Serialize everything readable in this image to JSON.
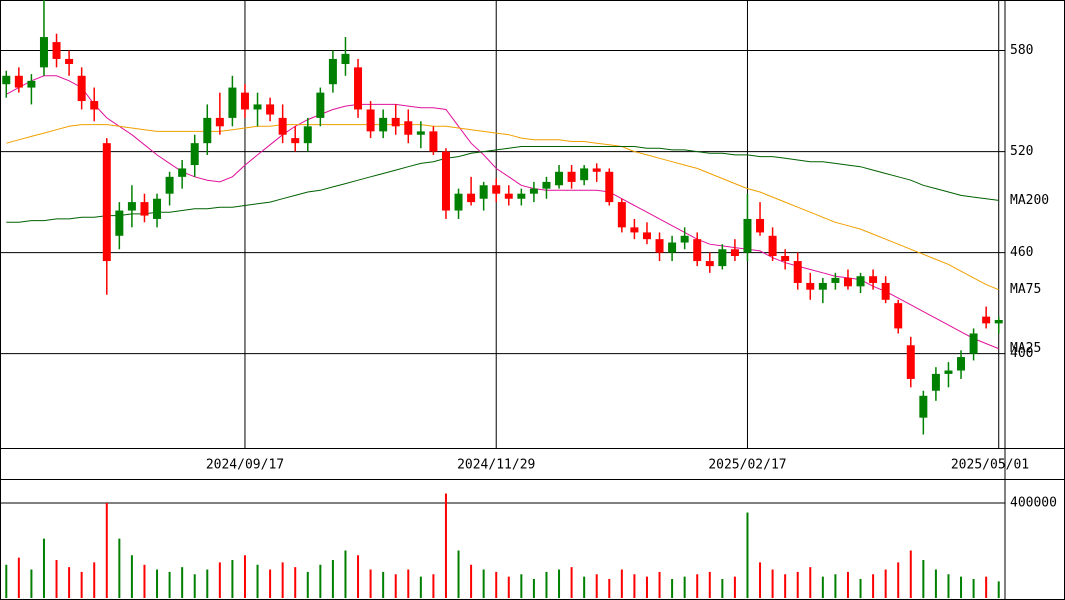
{
  "chart_data": [
    {
      "type": "candlestick",
      "categories": [
        null,
        null,
        null,
        null,
        null,
        null,
        null,
        null,
        null,
        null,
        null,
        null,
        null,
        null,
        null,
        null,
        null,
        null,
        null,
        "2024/09/17",
        null,
        null,
        null,
        null,
        null,
        null,
        null,
        null,
        null,
        null,
        null,
        null,
        null,
        null,
        null,
        null,
        null,
        null,
        null,
        "2024/11/29",
        null,
        null,
        null,
        null,
        null,
        null,
        null,
        null,
        null,
        null,
        null,
        null,
        null,
        null,
        null,
        null,
        null,
        null,
        null,
        "2025/02/17",
        null,
        null,
        null,
        null,
        null,
        null,
        null,
        null,
        null,
        null,
        null,
        null,
        null,
        null,
        null,
        null,
        null,
        null,
        null,
        "2025/05/01"
      ],
      "open": [
        560,
        565,
        558,
        570,
        585,
        575,
        565,
        550,
        525,
        470,
        485,
        490,
        480,
        495,
        505,
        512,
        525,
        540,
        540,
        555,
        545,
        548,
        540,
        528,
        525,
        540,
        560,
        572,
        570,
        545,
        532,
        540,
        538,
        530,
        532,
        520,
        485,
        495,
        492,
        500,
        495,
        492,
        495,
        498,
        500,
        508,
        503,
        510,
        508,
        490,
        475,
        472,
        468,
        460,
        466,
        468,
        455,
        452,
        462,
        460,
        480,
        470,
        458,
        455,
        442,
        438,
        442,
        445,
        440,
        446,
        442,
        430,
        405,
        362,
        378,
        388,
        390,
        400,
        422,
        418
      ],
      "high": [
        568,
        570,
        566,
        610,
        590,
        580,
        570,
        558,
        528,
        490,
        500,
        495,
        495,
        508,
        515,
        530,
        548,
        555,
        565,
        560,
        555,
        552,
        548,
        535,
        540,
        558,
        580,
        588,
        575,
        550,
        545,
        548,
        545,
        538,
        535,
        522,
        498,
        505,
        502,
        504,
        500,
        498,
        502,
        505,
        512,
        512,
        512,
        513,
        510,
        492,
        480,
        478,
        472,
        470,
        475,
        472,
        460,
        465,
        468,
        495,
        490,
        475,
        462,
        460,
        448,
        445,
        448,
        450,
        448,
        450,
        446,
        432,
        410,
        378,
        392,
        395,
        402,
        415,
        428,
        422
      ],
      "low": [
        552,
        555,
        548,
        565,
        570,
        565,
        545,
        538,
        435,
        462,
        475,
        478,
        475,
        488,
        498,
        505,
        518,
        530,
        535,
        540,
        535,
        538,
        525,
        520,
        520,
        535,
        555,
        565,
        540,
        528,
        528,
        530,
        525,
        522,
        518,
        480,
        480,
        488,
        485,
        490,
        488,
        488,
        490,
        492,
        498,
        498,
        500,
        502,
        488,
        472,
        468,
        465,
        455,
        455,
        462,
        452,
        448,
        450,
        455,
        455,
        470,
        455,
        450,
        438,
        432,
        430,
        438,
        438,
        436,
        438,
        430,
        412,
        380,
        352,
        372,
        380,
        385,
        396,
        415,
        412
      ],
      "close": [
        565,
        558,
        562,
        588,
        575,
        572,
        550,
        545,
        455,
        485,
        490,
        482,
        492,
        505,
        510,
        525,
        540,
        535,
        558,
        545,
        548,
        542,
        530,
        525,
        535,
        555,
        575,
        578,
        545,
        532,
        540,
        535,
        530,
        532,
        520,
        485,
        495,
        490,
        500,
        495,
        492,
        495,
        498,
        502,
        508,
        502,
        510,
        508,
        490,
        475,
        472,
        468,
        460,
        466,
        470,
        455,
        452,
        462,
        458,
        480,
        472,
        458,
        455,
        442,
        438,
        442,
        445,
        440,
        446,
        442,
        432,
        415,
        385,
        375,
        388,
        390,
        398,
        412,
        418,
        420
      ],
      "up_color": "#008000",
      "down_color": "#ff0000",
      "series": [
        {
          "name": "MA25",
          "color": "#e0109a",
          "values": [
            554,
            558,
            562,
            565,
            565,
            562,
            558,
            548,
            540,
            535,
            530,
            524,
            518,
            513,
            508,
            505,
            503,
            502,
            505,
            512,
            518,
            524,
            530,
            535,
            539,
            542,
            545,
            547,
            548,
            548,
            548,
            548,
            547,
            546,
            546,
            545,
            535,
            525,
            518,
            510,
            505,
            500,
            498,
            497,
            497,
            497,
            497,
            497,
            496,
            492,
            488,
            484,
            480,
            476,
            472,
            468,
            465,
            464,
            463,
            462,
            461,
            457,
            454,
            452,
            450,
            448,
            446,
            445,
            444,
            440,
            437,
            433,
            429,
            425,
            421,
            417,
            413,
            409,
            406,
            403
          ]
        },
        {
          "name": "MA75",
          "color": "#f0a000",
          "values": [
            525,
            527,
            529,
            531,
            533,
            535,
            536,
            536,
            536,
            535,
            534,
            533,
            532,
            532,
            532,
            532,
            532,
            532,
            533,
            534,
            535,
            535,
            536,
            536,
            536,
            536,
            536,
            536,
            536,
            536,
            536,
            536,
            536,
            536,
            535,
            535,
            534,
            533,
            532,
            531,
            530,
            528,
            527,
            527,
            527,
            526,
            526,
            525,
            524,
            523,
            520,
            518,
            516,
            514,
            512,
            510,
            507,
            504,
            501,
            498,
            496,
            493,
            490,
            487,
            484,
            481,
            478,
            476,
            474,
            471,
            468,
            465,
            462,
            459,
            456,
            453,
            449,
            445,
            441,
            438
          ]
        },
        {
          "name": "MA200",
          "color": "#006000",
          "values": [
            478,
            478,
            479,
            479,
            480,
            480,
            481,
            481,
            482,
            482,
            483,
            483,
            484,
            484,
            485,
            486,
            486,
            487,
            487,
            488,
            489,
            490,
            492,
            494,
            496,
            497,
            499,
            501,
            503,
            505,
            507,
            509,
            511,
            513,
            514,
            516,
            517,
            519,
            520,
            521,
            522,
            523,
            523,
            523,
            523,
            523,
            523,
            523,
            523,
            523,
            523,
            522,
            522,
            521,
            521,
            520,
            519,
            519,
            518,
            518,
            517,
            517,
            516,
            515,
            514,
            514,
            513,
            512,
            511,
            509,
            507,
            505,
            503,
            500,
            498,
            496,
            494,
            493,
            492,
            491
          ]
        }
      ],
      "ylim": [
        344,
        610
      ],
      "yticks": [
        400,
        460,
        520,
        580
      ],
      "grid": true
    },
    {
      "type": "bar",
      "values": [
        140000,
        170000,
        120000,
        250000,
        160000,
        130000,
        110000,
        150000,
        400000,
        250000,
        180000,
        140000,
        120000,
        110000,
        130000,
        100000,
        120000,
        150000,
        160000,
        180000,
        140000,
        120000,
        150000,
        130000,
        110000,
        140000,
        160000,
        200000,
        180000,
        120000,
        110000,
        100000,
        120000,
        90000,
        100000,
        440000,
        200000,
        140000,
        120000,
        110000,
        90000,
        100000,
        80000,
        110000,
        120000,
        130000,
        90000,
        100000,
        80000,
        120000,
        100000,
        90000,
        110000,
        80000,
        90000,
        100000,
        110000,
        80000,
        90000,
        360000,
        150000,
        120000,
        100000,
        110000,
        130000,
        90000,
        100000,
        110000,
        80000,
        100000,
        120000,
        150000,
        200000,
        160000,
        120000,
        100000,
        90000,
        80000,
        90000,
        70000
      ],
      "ylim": [
        0,
        497000
      ],
      "yticks": [
        400000
      ],
      "grid": true
    }
  ]
}
